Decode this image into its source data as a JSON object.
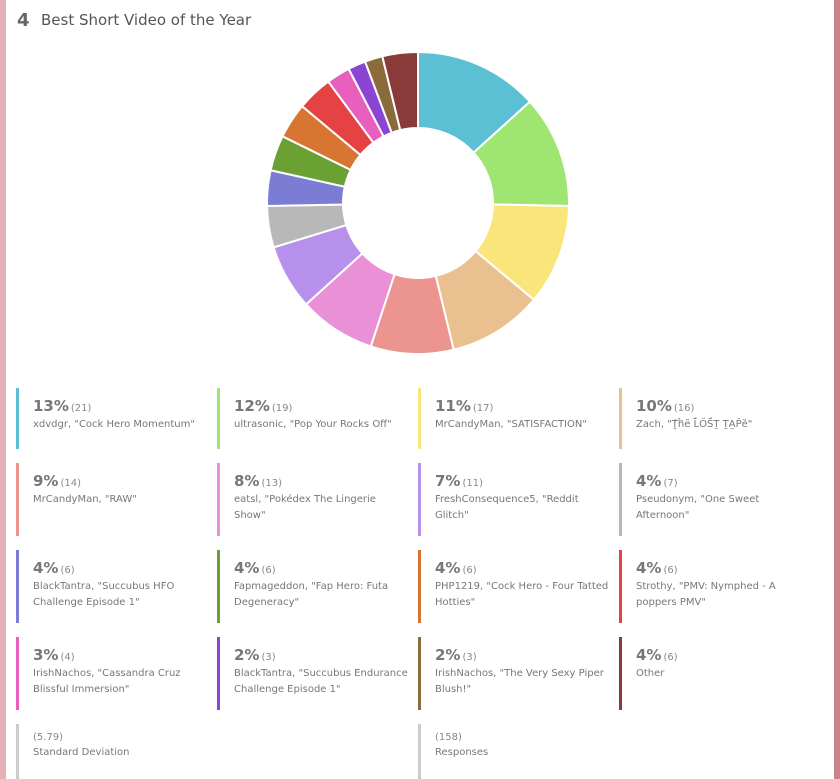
{
  "question": {
    "number": "4",
    "title": "Best Short Video of the Year"
  },
  "chart_data": {
    "type": "pie",
    "donut": true,
    "categories": [
      "xdvdgr, \"Cock Hero Momentum\"",
      "ultrasonic, \"Pop Your Rocks Off\"",
      "MrCandyMan, \"SATISFACTION\"",
      "Zach, \"Ṱ̂ĥ̂ȇ L̈́ŐS̈́Ṯ T̰A̰P̂ȅ\"",
      "MrCandyMan, \"RAW\"",
      "eatsl, \"Pokédex The Lingerie Show\"",
      "FreshConsequence5, \"Reddit Glitch\"",
      "Pseudonym, \"One Sweet Afternoon\"",
      "BlackTantra, \"Succubus HFO Challenge Episode 1\"",
      "Fapmageddon, \"Fap Hero: Futa Degeneracy\"",
      "PHP1219, \"Cock Hero - Four Tatted Hotties\"",
      "Strothy, \"PMV: Nymphed - A poppers PMV\"",
      "IrishNachos, \"Cassandra Cruz Blissful Immersion\"",
      "BlackTantra, \"Succubus Endurance Challenge Episode 1\"",
      "IrishNachos, \"The Very Sexy Piper Blush!\"",
      "Other"
    ],
    "values": [
      21,
      19,
      17,
      16,
      14,
      13,
      11,
      7,
      6,
      6,
      6,
      6,
      4,
      3,
      3,
      6
    ],
    "value_labels": [
      "(21)",
      "(19)",
      "(17)",
      "(16)",
      "(14)",
      "(13)",
      "(11)",
      "(7)",
      "(6)",
      "(6)",
      "(6)",
      "(6)",
      "(4)",
      "(3)",
      "(3)",
      "(6)"
    ],
    "percent_labels": [
      "13%",
      "12%",
      "11%",
      "10%",
      "9%",
      "8%",
      "7%",
      "4%",
      "4%",
      "4%",
      "4%",
      "4%",
      "3%",
      "2%",
      "2%",
      "4%"
    ],
    "colors": [
      "#5bc0d4",
      "#9ee671",
      "#f9e57a",
      "#ebc090",
      "#ec9590",
      "#ea90d6",
      "#b690ea",
      "#b8b8b8",
      "#7b7cd4",
      "#6aa132",
      "#d87532",
      "#e54343",
      "#e85fbd",
      "#8c45d3",
      "#8b6b3c",
      "#8b3a3a"
    ]
  },
  "stats": [
    {
      "label": "Standard Deviation",
      "value": 5.79,
      "value_label": "(5.79)"
    },
    {
      "label": "Responses",
      "value": 158,
      "value_label": "(158)"
    }
  ]
}
